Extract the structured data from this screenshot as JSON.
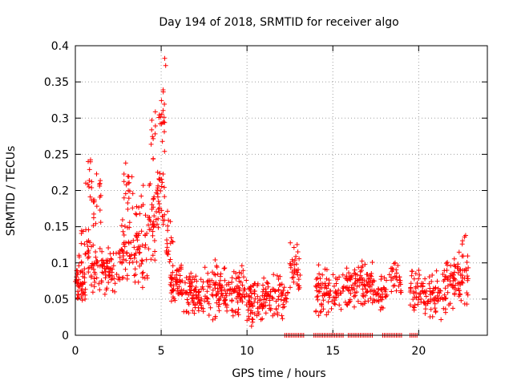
{
  "chart_data": {
    "type": "scatter",
    "title": "Day 194 of 2018, SRMTID for receiver algo",
    "xlabel": "GPS time / hours",
    "ylabel": "SRMTID / TECUs",
    "xlim": [
      0,
      24
    ],
    "ylim": [
      0,
      0.4
    ],
    "x_ticks": [
      0,
      5,
      10,
      15,
      20
    ],
    "x_tick_labels": [
      "0",
      "5",
      "10",
      "15",
      "20"
    ],
    "y_ticks": [
      0,
      0.05,
      0.1,
      0.15,
      0.2,
      0.25,
      0.3,
      0.35,
      0.4
    ],
    "y_tick_labels": [
      "0",
      "0.05",
      "0.1",
      "0.15",
      "0.2",
      "0.25",
      "0.3",
      "0.35",
      "0.4"
    ],
    "grid": true,
    "marker": "+",
    "color": "#ff0000",
    "series": [
      {
        "name": "SRMTID",
        "profile": [
          {
            "x": [
              0.0,
              0.6
            ],
            "y": [
              0.03,
              0.11
            ],
            "n": 45
          },
          {
            "x": [
              0.2,
              0.9
            ],
            "y": [
              0.07,
              0.16
            ],
            "n": 25
          },
          {
            "x": [
              0.6,
              1.0
            ],
            "y": [
              0.17,
              0.25
            ],
            "n": 12
          },
          {
            "x": [
              0.9,
              1.8
            ],
            "y": [
              0.05,
              0.14
            ],
            "n": 45
          },
          {
            "x": [
              1.0,
              1.5
            ],
            "y": [
              0.13,
              0.24
            ],
            "n": 18
          },
          {
            "x": [
              1.7,
              2.6
            ],
            "y": [
              0.05,
              0.13
            ],
            "n": 45
          },
          {
            "x": [
              2.6,
              3.3
            ],
            "y": [
              0.07,
              0.17
            ],
            "n": 40
          },
          {
            "x": [
              2.8,
              3.4
            ],
            "y": [
              0.17,
              0.245
            ],
            "n": 18
          },
          {
            "x": [
              3.3,
              4.2
            ],
            "y": [
              0.05,
              0.16
            ],
            "n": 45
          },
          {
            "x": [
              3.5,
              4.1
            ],
            "y": [
              0.15,
              0.21
            ],
            "n": 10
          },
          {
            "x": [
              4.2,
              4.7
            ],
            "y": [
              0.08,
              0.22
            ],
            "n": 30
          },
          {
            "x": [
              4.4,
              4.7
            ],
            "y": [
              0.22,
              0.33
            ],
            "n": 10
          },
          {
            "x": [
              4.7,
              5.2
            ],
            "y": [
              0.12,
              0.25
            ],
            "n": 35
          },
          {
            "x": [
              4.8,
              5.3
            ],
            "y": [
              0.25,
              0.36
            ],
            "n": 18
          },
          {
            "x": [
              5.0,
              5.3
            ],
            "y": [
              0.36,
              0.39
            ],
            "n": 2
          },
          {
            "x": [
              5.3,
              5.7
            ],
            "y": [
              0.08,
              0.2
            ],
            "n": 20
          },
          {
            "x": [
              5.5,
              6.2
            ],
            "y": [
              0.04,
              0.1
            ],
            "n": 50
          },
          {
            "x": [
              6.2,
              7.5
            ],
            "y": [
              0.025,
              0.09
            ],
            "n": 80
          },
          {
            "x": [
              7.5,
              8.7
            ],
            "y": [
              0.02,
              0.11
            ],
            "n": 70
          },
          {
            "x": [
              8.7,
              10.0
            ],
            "y": [
              0.02,
              0.1
            ],
            "n": 80
          },
          {
            "x": [
              10.0,
              10.9
            ],
            "y": [
              0.01,
              0.08
            ],
            "n": 60
          },
          {
            "x": [
              10.9,
              12.1
            ],
            "y": [
              0.02,
              0.09
            ],
            "n": 70
          },
          {
            "x": [
              12.1,
              12.4
            ],
            "y": [
              0.03,
              0.07
            ],
            "n": 12
          },
          {
            "x": [
              12.5,
              13.1
            ],
            "y": [
              0.04,
              0.14
            ],
            "n": 35
          },
          {
            "x": [
              14.0,
              14.6
            ],
            "y": [
              0.02,
              0.11
            ],
            "n": 40
          },
          {
            "x": [
              14.6,
              15.6
            ],
            "y": [
              0.015,
              0.095
            ],
            "n": 45
          },
          {
            "x": [
              15.6,
              16.5
            ],
            "y": [
              0.03,
              0.1
            ],
            "n": 50
          },
          {
            "x": [
              16.5,
              17.4
            ],
            "y": [
              0.03,
              0.11
            ],
            "n": 55
          },
          {
            "x": [
              17.4,
              18.2
            ],
            "y": [
              0.03,
              0.09
            ],
            "n": 35
          },
          {
            "x": [
              18.2,
              19.0
            ],
            "y": [
              0.05,
              0.11
            ],
            "n": 30
          },
          {
            "x": [
              19.5,
              20.4
            ],
            "y": [
              0.02,
              0.1
            ],
            "n": 50
          },
          {
            "x": [
              20.4,
              21.6
            ],
            "y": [
              0.02,
              0.1
            ],
            "n": 65
          },
          {
            "x": [
              21.6,
              22.6
            ],
            "y": [
              0.03,
              0.12
            ],
            "n": 60
          },
          {
            "x": [
              22.5,
              22.9
            ],
            "y": [
              0.02,
              0.155
            ],
            "n": 22
          }
        ],
        "zero_runs": [
          [
            12.2,
            13.3
          ],
          [
            13.9,
            15.6
          ],
          [
            15.9,
            17.3
          ],
          [
            17.9,
            19.0
          ],
          [
            19.5,
            19.9
          ]
        ],
        "zero_step": 0.1
      }
    ]
  }
}
